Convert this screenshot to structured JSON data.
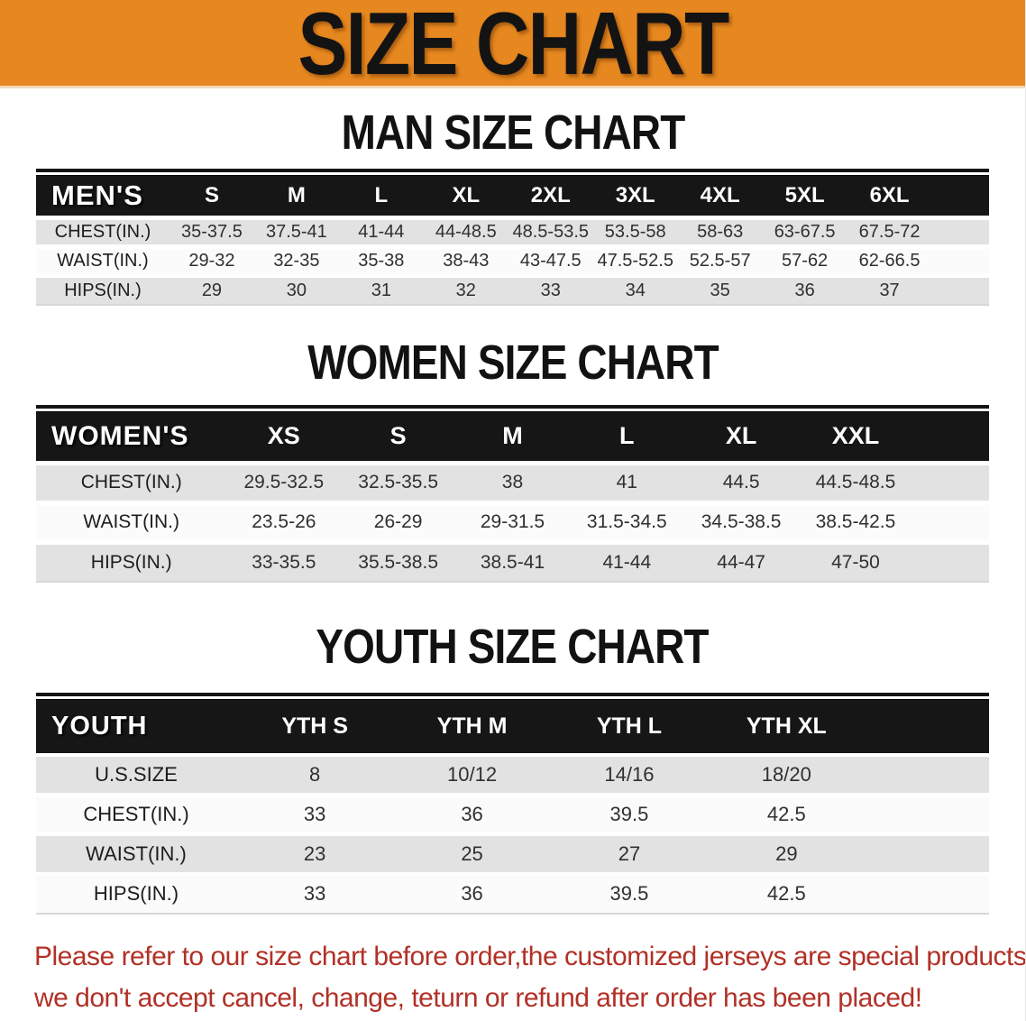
{
  "banner": {
    "title": "SIZE CHART",
    "bg_color": "#E6871F",
    "title_color": "#131313"
  },
  "sections": [
    {
      "heading": "MAN SIZE CHART",
      "table": {
        "corner_label": "MEN'S",
        "columns": [
          "S",
          "M",
          "L",
          "XL",
          "2XL",
          "3XL",
          "4XL",
          "5XL",
          "6XL"
        ],
        "rows": [
          {
            "label": "CHEST(IN.)",
            "values": [
              "35-37.5",
              "37.5-41",
              "41-44",
              "44-48.5",
              "48.5-53.5",
              "53.5-58",
              "58-63",
              "63-67.5",
              "67.5-72"
            ]
          },
          {
            "label": "WAIST(IN.)",
            "values": [
              "29-32",
              "32-35",
              "35-38",
              "38-43",
              "43-47.5",
              "47.5-52.5",
              "52.5-57",
              "57-62",
              "62-66.5"
            ]
          },
          {
            "label": "HIPS(IN.)",
            "values": [
              "29",
              "30",
              "31",
              "32",
              "33",
              "34",
              "35",
              "36",
              "37"
            ]
          }
        ]
      }
    },
    {
      "heading": "WOMEN SIZE CHART",
      "table": {
        "corner_label": "WOMEN'S",
        "columns": [
          "XS",
          "S",
          "M",
          "L",
          "XL",
          "XXL"
        ],
        "rows": [
          {
            "label": "CHEST(IN.)",
            "values": [
              "29.5-32.5",
              "32.5-35.5",
              "38",
              "41",
              "44.5",
              "44.5-48.5"
            ]
          },
          {
            "label": "WAIST(IN.)",
            "values": [
              "23.5-26",
              "26-29",
              "29-31.5",
              "31.5-34.5",
              "34.5-38.5",
              "38.5-42.5"
            ]
          },
          {
            "label": "HIPS(IN.)",
            "values": [
              "33-35.5",
              "35.5-38.5",
              "38.5-41",
              "41-44",
              "44-47",
              "47-50"
            ]
          }
        ]
      }
    },
    {
      "heading": "YOUTH SIZE CHART",
      "table": {
        "corner_label": "YOUTH",
        "columns": [
          "YTH S",
          "YTH M",
          "YTH L",
          "YTH XL"
        ],
        "rows": [
          {
            "label": "U.S.SIZE",
            "values": [
              "8",
              "10/12",
              "14/16",
              "18/20"
            ]
          },
          {
            "label": "CHEST(IN.)",
            "values": [
              "33",
              "36",
              "39.5",
              "42.5"
            ]
          },
          {
            "label": "WAIST(IN.)",
            "values": [
              "23",
              "25",
              "27",
              "29"
            ]
          },
          {
            "label": "HIPS(IN.)",
            "values": [
              "33",
              "36",
              "39.5",
              "42.5"
            ]
          }
        ]
      }
    }
  ],
  "footer": {
    "lines": [
      "Please refer to our size chart before order,the customized jerseys are special products,",
      "we don't accept cancel, change, teturn or refund after order has been placed!"
    ],
    "text_color": "#B13127"
  },
  "colors": {
    "banner_orange": "#E6871F",
    "header_black": "#161616",
    "row_gray": "#E2E2E2",
    "row_white": "#FBFBFB",
    "disclaimer_red": "#B13127"
  }
}
